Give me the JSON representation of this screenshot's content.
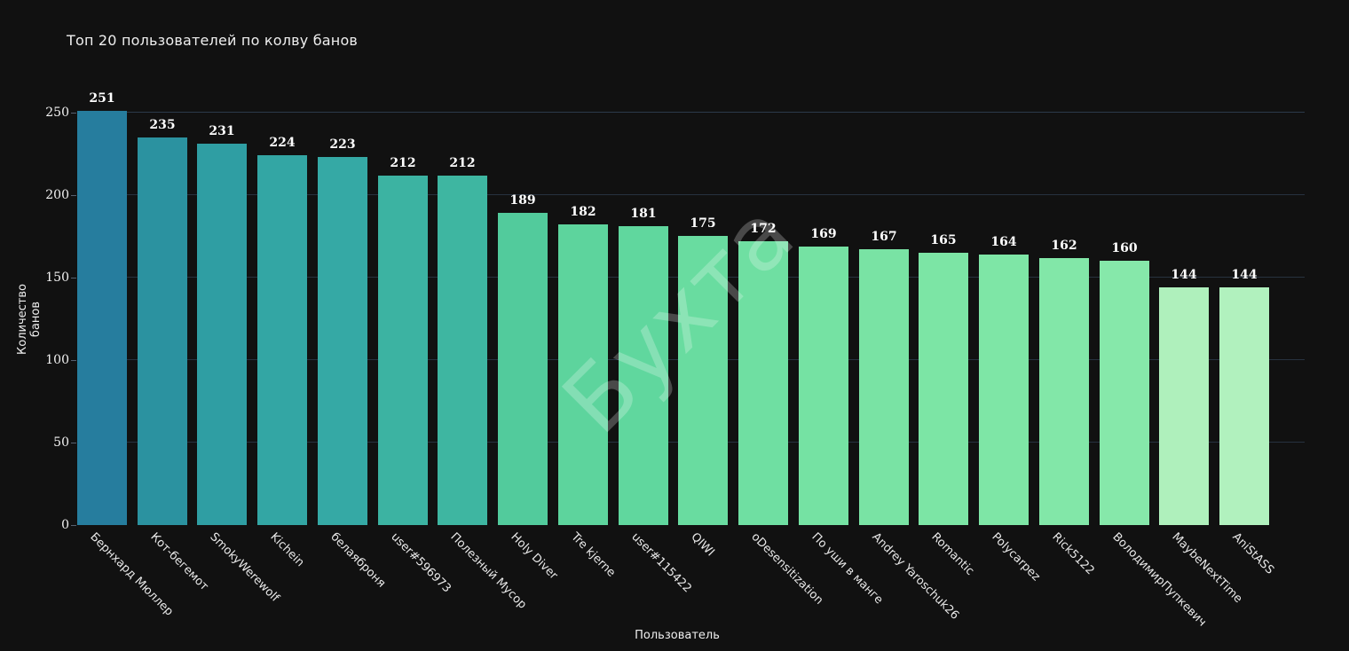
{
  "title": "Топ 20 пользователей по колву банов",
  "watermark": "Бухта",
  "colors": {
    "background": "#111111",
    "grid": "#27323f",
    "text": "#efefef"
  },
  "chart_data": {
    "type": "bar",
    "title": "Топ 20 пользователей по колву банов",
    "xlabel": "Пользователь",
    "ylabel": "Количество банов",
    "categories": [
      "Бернхард Мюллер",
      "Кот-бегемот",
      "SmokyWerewolf",
      "Kichein",
      "белаяброня",
      "user#596973",
      "Полезный Мусор",
      "Holy Diver",
      "Tre kjerne",
      "user#115422",
      "QIWI",
      "oDesensitization",
      "По уши в манге",
      "Andrey Yaroschuk26",
      "Romantic",
      "Polycarpez",
      "Rick5122",
      "ВолодимирПупкевич",
      "MaybeNextTime",
      "AniStASS"
    ],
    "values": [
      251,
      235,
      231,
      224,
      223,
      212,
      212,
      189,
      182,
      181,
      175,
      172,
      169,
      167,
      165,
      164,
      162,
      160,
      144,
      144
    ],
    "bar_colors": [
      "#267d9e",
      "#2b92a0",
      "#2f9ea3",
      "#33a6a4",
      "#35a9a5",
      "#3cb3a2",
      "#3eb6a1",
      "#52cb9c",
      "#5dd49d",
      "#60d79e",
      "#69dca0",
      "#6fdfa2",
      "#75e2a3",
      "#79e3a4",
      "#7ce5a5",
      "#7ee6a6",
      "#82e7a8",
      "#86e8aa",
      "#aff0bc",
      "#b1f1be"
    ],
    "yticks": [
      0,
      50,
      100,
      150,
      200,
      250
    ],
    "ylim": [
      0,
      250
    ],
    "grid": true,
    "legend": "none"
  }
}
